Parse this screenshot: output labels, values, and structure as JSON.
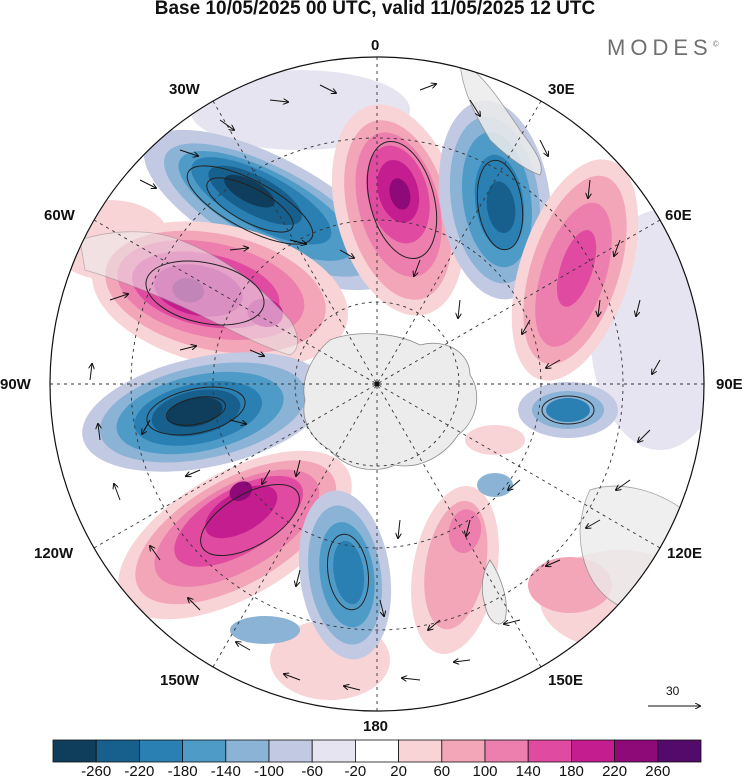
{
  "title": "Base 10/05/2025 00 UTC, valid 11/05/2025 12 UTC",
  "brand": "MODES",
  "brand_mark": "©",
  "longitude_labels": {
    "n0": "0",
    "n30e": "30E",
    "n60e": "60E",
    "n90e": "90E",
    "n120e": "120E",
    "n150e": "150E",
    "n180": "180",
    "n150w": "150W",
    "n120w": "120W",
    "n90w": "90W",
    "n60w": "60W",
    "n30w": "30W"
  },
  "reference_vector": "30",
  "colorbar": {
    "ticks": [
      "-260",
      "-220",
      "-180",
      "-140",
      "-100",
      "-60",
      "-20",
      "20",
      "60",
      "100",
      "140",
      "180",
      "220",
      "260"
    ],
    "colors": [
      "#0f3d5c",
      "#175f8c",
      "#2a7fb3",
      "#4f9bc8",
      "#8ab3d6",
      "#c2c9e3",
      "#e6e4f0",
      "#ffffff",
      "#f8d4d7",
      "#f2a6b8",
      "#ec7fad",
      "#e04aa0",
      "#c41d8f",
      "#8e0a78",
      "#540a6b"
    ]
  },
  "anomaly_centers": [
    {
      "sign": "neg",
      "strength": "strong",
      "label": "30W-50W trough"
    },
    {
      "sign": "pos",
      "strength": "strong",
      "label": "0E ridge"
    },
    {
      "sign": "neg",
      "strength": "strong",
      "label": "30E trough"
    },
    {
      "sign": "pos",
      "strength": "medium",
      "label": "60E ridge"
    },
    {
      "sign": "pos",
      "strength": "strong",
      "label": "70W ridge"
    },
    {
      "sign": "neg",
      "strength": "strong",
      "label": "90W trough"
    },
    {
      "sign": "pos",
      "strength": "strong",
      "label": "120W-140W ridge"
    },
    {
      "sign": "neg",
      "strength": "medium",
      "label": "165W trough"
    },
    {
      "sign": "pos",
      "strength": "weak",
      "label": "160E ridge"
    },
    {
      "sign": "neg",
      "strength": "weak",
      "label": "95E trough"
    }
  ]
}
